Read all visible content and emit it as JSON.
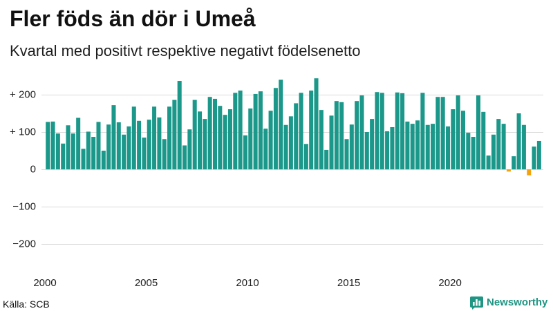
{
  "chart_data": {
    "type": "bar",
    "title": "Fler föds än dör i Umeå",
    "subtitle": "Kvartal med positivt respektive negativt födelsenetto",
    "xlim": [
      2000,
      2024.5
    ],
    "ylim": [
      -200,
      200
    ],
    "grid": true,
    "x_ticks": [
      {
        "value": 2000,
        "label": "2000"
      },
      {
        "value": 2005,
        "label": "2005"
      },
      {
        "value": 2010,
        "label": "2010"
      },
      {
        "value": 2015,
        "label": "2015"
      },
      {
        "value": 2020,
        "label": "2020"
      }
    ],
    "y_ticks": [
      {
        "value": 200,
        "label": "+ 200"
      },
      {
        "value": 100,
        "label": "+ 100"
      },
      {
        "value": 0,
        "label": "0"
      },
      {
        "value": -100,
        "label": "−100"
      },
      {
        "value": -200,
        "label": "−200"
      }
    ],
    "x": [
      2000,
      2000.25,
      2000.5,
      2000.75,
      2001,
      2001.25,
      2001.5,
      2001.75,
      2002,
      2002.25,
      2002.5,
      2002.75,
      2003,
      2003.25,
      2003.5,
      2003.75,
      2004,
      2004.25,
      2004.5,
      2004.75,
      2005,
      2005.25,
      2005.5,
      2005.75,
      2006,
      2006.25,
      2006.5,
      2006.75,
      2007,
      2007.25,
      2007.5,
      2007.75,
      2008,
      2008.25,
      2008.5,
      2008.75,
      2009,
      2009.25,
      2009.5,
      2009.75,
      2010,
      2010.25,
      2010.5,
      2010.75,
      2011,
      2011.25,
      2011.5,
      2011.75,
      2012,
      2012.25,
      2012.5,
      2012.75,
      2013,
      2013.25,
      2013.5,
      2013.75,
      2014,
      2014.25,
      2014.5,
      2014.75,
      2015,
      2015.25,
      2015.5,
      2015.75,
      2016,
      2016.25,
      2016.5,
      2016.75,
      2017,
      2017.25,
      2017.5,
      2017.75,
      2018,
      2018.25,
      2018.5,
      2018.75,
      2019,
      2019.25,
      2019.5,
      2019.75,
      2020,
      2020.25,
      2020.5,
      2020.75,
      2021,
      2021.25,
      2021.5,
      2021.75,
      2022,
      2022.25,
      2022.5,
      2022.75,
      2023,
      2023.25,
      2023.5,
      2023.75,
      2024,
      2024.25
    ],
    "values": [
      127,
      128,
      96,
      69,
      118,
      96,
      138,
      55,
      101,
      87,
      127,
      50,
      120,
      172,
      126,
      93,
      115,
      168,
      130,
      85,
      133,
      168,
      139,
      81,
      168,
      186,
      237,
      64,
      107,
      186,
      155,
      135,
      194,
      189,
      170,
      146,
      161,
      205,
      211,
      91,
      163,
      202,
      209,
      109,
      157,
      218,
      240,
      119,
      142,
      177,
      205,
      68,
      211,
      244,
      159,
      52,
      144,
      183,
      180,
      81,
      120,
      183,
      198,
      100,
      135,
      207,
      205,
      102,
      113,
      206,
      204,
      128,
      122,
      131,
      205,
      119,
      122,
      194,
      194,
      115,
      161,
      198,
      157,
      98,
      87,
      198,
      154,
      37,
      93,
      135,
      122,
      -6,
      35,
      150,
      119,
      -16,
      61,
      76
    ],
    "colors": {
      "positive": "#1b988a",
      "negative": "#f3a40c",
      "grid": "#d9d9d9"
    }
  },
  "source": "Källa: SCB",
  "logo": {
    "text": "Newsworthy",
    "icon": "newsworthy-bar-chart-icon",
    "color": "#1f9583"
  }
}
